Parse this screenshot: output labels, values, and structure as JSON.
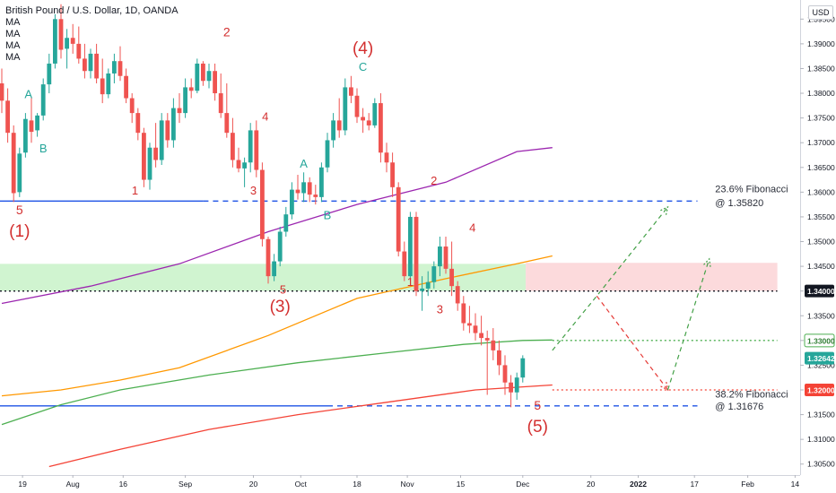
{
  "header": {
    "symbol": "British Pound / U.S. Dollar, 1D, OANDA",
    "indicators": [
      "MA",
      "MA",
      "MA",
      "MA"
    ]
  },
  "currency_button": "USD",
  "colors": {
    "bull": "#26a69a",
    "bear": "#ef5350",
    "blue": "#1e53e5",
    "green_label": "#26a69a",
    "red_label": "#d32f2f",
    "ma_purple": "#9c27b0",
    "ma_orange": "#ff9800",
    "ma_green": "#4caf50",
    "ma_red": "#f44336"
  },
  "chart_data": {
    "type": "candlestick",
    "title": "British Pound / U.S. Dollar, 1D, OANDA",
    "y_axis": {
      "ylim": [
        1.3035,
        1.3985
      ],
      "ticks": [
        "1.39500",
        "1.39000",
        "1.38500",
        "1.38000",
        "1.37500",
        "1.37000",
        "1.36500",
        "1.36000",
        "1.35500",
        "1.35000",
        "1.34500",
        "1.34000",
        "1.33500",
        "1.33000",
        "1.32500",
        "1.32000",
        "1.31500",
        "1.31000",
        "1.30500"
      ],
      "price_labels": [
        {
          "text": "1.34000",
          "value": 1.34,
          "style": "dark"
        },
        {
          "text": "1.33000",
          "value": 1.33,
          "style": "green"
        },
        {
          "text": "1.32642",
          "value": 1.32642,
          "style": "teal"
        },
        {
          "text": "1.32000",
          "value": 1.32,
          "style": "red"
        }
      ]
    },
    "x_axis": {
      "ticks": [
        "19",
        "Aug",
        "16",
        "Sep",
        "20",
        "Oct",
        "18",
        "Nov",
        "15",
        "Dec",
        "20",
        "2022",
        "17",
        "Feb",
        "14"
      ]
    },
    "candles": [
      {
        "o": 1.382,
        "h": 1.385,
        "l": 1.376,
        "c": 1.3785
      },
      {
        "o": 1.3785,
        "h": 1.381,
        "l": 1.37,
        "c": 1.372
      },
      {
        "o": 1.372,
        "h": 1.3735,
        "l": 1.358,
        "c": 1.3598
      },
      {
        "o": 1.36,
        "h": 1.369,
        "l": 1.359,
        "c": 1.3678
      },
      {
        "o": 1.368,
        "h": 1.376,
        "l": 1.367,
        "c": 1.3748
      },
      {
        "o": 1.3745,
        "h": 1.379,
        "l": 1.37,
        "c": 1.3722
      },
      {
        "o": 1.3725,
        "h": 1.376,
        "l": 1.3712,
        "c": 1.3755
      },
      {
        "o": 1.3755,
        "h": 1.383,
        "l": 1.3745,
        "c": 1.3818
      },
      {
        "o": 1.3818,
        "h": 1.388,
        "l": 1.38,
        "c": 1.386
      },
      {
        "o": 1.386,
        "h": 1.396,
        "l": 1.385,
        "c": 1.395
      },
      {
        "o": 1.395,
        "h": 1.398,
        "l": 1.387,
        "c": 1.3888
      },
      {
        "o": 1.389,
        "h": 1.393,
        "l": 1.385,
        "c": 1.3912
      },
      {
        "o": 1.3912,
        "h": 1.394,
        "l": 1.388,
        "c": 1.39
      },
      {
        "o": 1.39,
        "h": 1.3935,
        "l": 1.386,
        "c": 1.387
      },
      {
        "o": 1.387,
        "h": 1.39,
        "l": 1.383,
        "c": 1.3845
      },
      {
        "o": 1.3845,
        "h": 1.389,
        "l": 1.383,
        "c": 1.388
      },
      {
        "o": 1.388,
        "h": 1.39,
        "l": 1.382,
        "c": 1.383
      },
      {
        "o": 1.383,
        "h": 1.387,
        "l": 1.378,
        "c": 1.3798
      },
      {
        "o": 1.3798,
        "h": 1.385,
        "l": 1.379,
        "c": 1.384
      },
      {
        "o": 1.384,
        "h": 1.388,
        "l": 1.382,
        "c": 1.3865
      },
      {
        "o": 1.3865,
        "h": 1.3895,
        "l": 1.3825,
        "c": 1.3835
      },
      {
        "o": 1.3835,
        "h": 1.385,
        "l": 1.378,
        "c": 1.379
      },
      {
        "o": 1.379,
        "h": 1.38,
        "l": 1.374,
        "c": 1.376
      },
      {
        "o": 1.376,
        "h": 1.377,
        "l": 1.3705,
        "c": 1.372
      },
      {
        "o": 1.372,
        "h": 1.373,
        "l": 1.361,
        "c": 1.3625
      },
      {
        "o": 1.3625,
        "h": 1.37,
        "l": 1.3605,
        "c": 1.369
      },
      {
        "o": 1.369,
        "h": 1.374,
        "l": 1.365,
        "c": 1.3665
      },
      {
        "o": 1.3665,
        "h": 1.376,
        "l": 1.3655,
        "c": 1.3745
      },
      {
        "o": 1.3745,
        "h": 1.376,
        "l": 1.369,
        "c": 1.3705
      },
      {
        "o": 1.3705,
        "h": 1.379,
        "l": 1.369,
        "c": 1.377
      },
      {
        "o": 1.377,
        "h": 1.38,
        "l": 1.374,
        "c": 1.376
      },
      {
        "o": 1.376,
        "h": 1.383,
        "l": 1.375,
        "c": 1.3812
      },
      {
        "o": 1.3812,
        "h": 1.383,
        "l": 1.379,
        "c": 1.3805
      },
      {
        "o": 1.3805,
        "h": 1.387,
        "l": 1.38,
        "c": 1.386
      },
      {
        "o": 1.386,
        "h": 1.3865,
        "l": 1.3815,
        "c": 1.3825
      },
      {
        "o": 1.3825,
        "h": 1.386,
        "l": 1.381,
        "c": 1.3845
      },
      {
        "o": 1.3845,
        "h": 1.386,
        "l": 1.3785,
        "c": 1.38
      },
      {
        "o": 1.38,
        "h": 1.384,
        "l": 1.375,
        "c": 1.376
      },
      {
        "o": 1.376,
        "h": 1.382,
        "l": 1.371,
        "c": 1.372
      },
      {
        "o": 1.372,
        "h": 1.375,
        "l": 1.365,
        "c": 1.3665
      },
      {
        "o": 1.3665,
        "h": 1.369,
        "l": 1.364,
        "c": 1.3648
      },
      {
        "o": 1.3648,
        "h": 1.367,
        "l": 1.361,
        "c": 1.366
      },
      {
        "o": 1.366,
        "h": 1.374,
        "l": 1.364,
        "c": 1.3725
      },
      {
        "o": 1.3725,
        "h": 1.3745,
        "l": 1.363,
        "c": 1.3645
      },
      {
        "o": 1.3645,
        "h": 1.366,
        "l": 1.349,
        "c": 1.3505
      },
      {
        "o": 1.3505,
        "h": 1.351,
        "l": 1.3415,
        "c": 1.343
      },
      {
        "o": 1.343,
        "h": 1.3475,
        "l": 1.342,
        "c": 1.346
      },
      {
        "o": 1.346,
        "h": 1.353,
        "l": 1.345,
        "c": 1.352
      },
      {
        "o": 1.352,
        "h": 1.357,
        "l": 1.351,
        "c": 1.3555
      },
      {
        "o": 1.3555,
        "h": 1.362,
        "l": 1.3545,
        "c": 1.3605
      },
      {
        "o": 1.3605,
        "h": 1.3635,
        "l": 1.3585,
        "c": 1.3598
      },
      {
        "o": 1.3598,
        "h": 1.364,
        "l": 1.358,
        "c": 1.362
      },
      {
        "o": 1.362,
        "h": 1.363,
        "l": 1.358,
        "c": 1.3595
      },
      {
        "o": 1.3595,
        "h": 1.3615,
        "l": 1.3575,
        "c": 1.359
      },
      {
        "o": 1.359,
        "h": 1.366,
        "l": 1.358,
        "c": 1.365
      },
      {
        "o": 1.365,
        "h": 1.372,
        "l": 1.364,
        "c": 1.3705
      },
      {
        "o": 1.3705,
        "h": 1.376,
        "l": 1.369,
        "c": 1.3745
      },
      {
        "o": 1.3745,
        "h": 1.379,
        "l": 1.371,
        "c": 1.3725
      },
      {
        "o": 1.3725,
        "h": 1.383,
        "l": 1.3715,
        "c": 1.3812
      },
      {
        "o": 1.3812,
        "h": 1.3835,
        "l": 1.378,
        "c": 1.3795
      },
      {
        "o": 1.3795,
        "h": 1.381,
        "l": 1.374,
        "c": 1.3752
      },
      {
        "o": 1.3752,
        "h": 1.377,
        "l": 1.372,
        "c": 1.3745
      },
      {
        "o": 1.3745,
        "h": 1.376,
        "l": 1.3725,
        "c": 1.3735
      },
      {
        "o": 1.3735,
        "h": 1.379,
        "l": 1.373,
        "c": 1.378
      },
      {
        "o": 1.378,
        "h": 1.38,
        "l": 1.366,
        "c": 1.368
      },
      {
        "o": 1.368,
        "h": 1.37,
        "l": 1.364,
        "c": 1.366
      },
      {
        "o": 1.366,
        "h": 1.368,
        "l": 1.359,
        "c": 1.361
      },
      {
        "o": 1.361,
        "h": 1.362,
        "l": 1.347,
        "c": 1.348
      },
      {
        "o": 1.348,
        "h": 1.35,
        "l": 1.342,
        "c": 1.343
      },
      {
        "o": 1.343,
        "h": 1.356,
        "l": 1.342,
        "c": 1.355
      },
      {
        "o": 1.355,
        "h": 1.356,
        "l": 1.339,
        "c": 1.34
      },
      {
        "o": 1.34,
        "h": 1.343,
        "l": 1.336,
        "c": 1.3405
      },
      {
        "o": 1.3405,
        "h": 1.344,
        "l": 1.339,
        "c": 1.3418
      },
      {
        "o": 1.3418,
        "h": 1.346,
        "l": 1.3405,
        "c": 1.345
      },
      {
        "o": 1.345,
        "h": 1.351,
        "l": 1.343,
        "c": 1.349
      },
      {
        "o": 1.349,
        "h": 1.351,
        "l": 1.3435,
        "c": 1.3445
      },
      {
        "o": 1.3445,
        "h": 1.35,
        "l": 1.339,
        "c": 1.341
      },
      {
        "o": 1.341,
        "h": 1.342,
        "l": 1.336,
        "c": 1.3375
      },
      {
        "o": 1.3375,
        "h": 1.339,
        "l": 1.332,
        "c": 1.3335
      },
      {
        "o": 1.3335,
        "h": 1.337,
        "l": 1.3315,
        "c": 1.333
      },
      {
        "o": 1.333,
        "h": 1.3355,
        "l": 1.33,
        "c": 1.3315
      },
      {
        "o": 1.3315,
        "h": 1.335,
        "l": 1.329,
        "c": 1.3305
      },
      {
        "o": 1.3305,
        "h": 1.332,
        "l": 1.319,
        "c": 1.33
      },
      {
        "o": 1.33,
        "h": 1.3325,
        "l": 1.326,
        "c": 1.328
      },
      {
        "o": 1.328,
        "h": 1.33,
        "l": 1.323,
        "c": 1.325
      },
      {
        "o": 1.325,
        "h": 1.327,
        "l": 1.319,
        "c": 1.3215
      },
      {
        "o": 1.3215,
        "h": 1.323,
        "l": 1.3165,
        "c": 1.3195
      },
      {
        "o": 1.3195,
        "h": 1.3235,
        "l": 1.318,
        "c": 1.3225
      },
      {
        "o": 1.3225,
        "h": 1.327,
        "l": 1.3215,
        "c": 1.3264
      }
    ],
    "moving_averages": [
      {
        "name": "MA",
        "color": "#9c27b0",
        "points": [
          [
            0,
            1.3375
          ],
          [
            15,
            1.341
          ],
          [
            30,
            1.3455
          ],
          [
            45,
            1.352
          ],
          [
            60,
            1.3575
          ],
          [
            75,
            1.362
          ],
          [
            87,
            1.3682
          ],
          [
            93,
            1.369
          ]
        ]
      },
      {
        "name": "MA",
        "color": "#ff9800",
        "points": [
          [
            0,
            1.3188
          ],
          [
            10,
            1.32
          ],
          [
            20,
            1.322
          ],
          [
            30,
            1.3245
          ],
          [
            45,
            1.331
          ],
          [
            60,
            1.3385
          ],
          [
            75,
            1.3425
          ],
          [
            87,
            1.3455
          ],
          [
            93,
            1.3471
          ]
        ]
      },
      {
        "name": "MA",
        "color": "#4caf50",
        "points": [
          [
            0,
            1.313
          ],
          [
            10,
            1.317
          ],
          [
            20,
            1.32
          ],
          [
            35,
            1.323
          ],
          [
            50,
            1.3255
          ],
          [
            65,
            1.3275
          ],
          [
            78,
            1.3292
          ],
          [
            88,
            1.33
          ],
          [
            93,
            1.3301
          ]
        ]
      },
      {
        "name": "MA",
        "color": "#f44336",
        "points": [
          [
            8,
            1.3045
          ],
          [
            20,
            1.308
          ],
          [
            35,
            1.312
          ],
          [
            50,
            1.315
          ],
          [
            65,
            1.3175
          ],
          [
            80,
            1.32
          ],
          [
            93,
            1.321
          ]
        ]
      }
    ],
    "zones": [
      {
        "name": "green-zone",
        "from": 1.34,
        "to": 1.3455,
        "x_start": -1,
        "x_end": 88.5,
        "color": "#c8f2c8"
      },
      {
        "name": "red-zone",
        "from": 1.34,
        "to": 1.3457,
        "x_start": 88.5,
        "x_end": 131,
        "color": "#fbd4d6"
      }
    ],
    "horizontal_lines": [
      {
        "name": "fib-23-solid",
        "value": 1.3582,
        "x_start": -1,
        "x_end": 34,
        "color": "#1e53e5",
        "dash": false
      },
      {
        "name": "fib-23-dashed",
        "value": 1.3582,
        "x_start": 34,
        "x_end": 117.5,
        "color": "#1e53e5",
        "dash": true
      },
      {
        "name": "fib-38-solid",
        "value": 1.31676,
        "x_start": -1,
        "x_end": 55,
        "color": "#1e53e5",
        "dash": false
      },
      {
        "name": "fib-38-dashed",
        "value": 1.31676,
        "x_start": 55,
        "x_end": 117.5,
        "color": "#1e53e5",
        "dash": true
      },
      {
        "name": "line-134000",
        "value": 1.34,
        "x_start": -1,
        "x_end": 131,
        "color": "#131722",
        "dash": "dot"
      },
      {
        "name": "line-133000",
        "value": 1.33,
        "x_start": 93,
        "x_end": 131,
        "color": "#4caf50",
        "dash": "dot"
      },
      {
        "name": "line-132000",
        "value": 1.32,
        "x_start": 93,
        "x_end": 131,
        "color": "#f44336",
        "dash": "dot"
      }
    ],
    "projection_paths": [
      {
        "name": "green-path-upper",
        "color": "#43a047",
        "points": [
          [
            93,
            1.328
          ],
          [
            100.5,
            1.339
          ],
          [
            112.5,
            1.357
          ]
        ]
      },
      {
        "name": "red-path",
        "color": "#e53935",
        "points": [
          [
            100.5,
            1.339
          ],
          [
            112.5,
            1.32
          ]
        ]
      },
      {
        "name": "green-path-lower",
        "color": "#43a047",
        "points": [
          [
            112.5,
            1.32
          ],
          [
            119.5,
            1.3465
          ]
        ]
      }
    ],
    "wave_labels": [
      {
        "text": "5",
        "x": 3,
        "y": 1.3555,
        "color": "#d32f2f",
        "size": 14
      },
      {
        "text": "(1)",
        "x": 3,
        "y": 1.351,
        "color": "#d32f2f",
        "size": 19
      },
      {
        "text": "A",
        "x": 4.5,
        "y": 1.379,
        "color": "#26a69a",
        "size": 13
      },
      {
        "text": "B",
        "x": 7,
        "y": 1.368,
        "color": "#26a69a",
        "size": 13
      },
      {
        "text": "1",
        "x": 22.5,
        "y": 1.3595,
        "color": "#d32f2f",
        "size": 13
      },
      {
        "text": "2",
        "x": 38,
        "y": 1.3915,
        "color": "#d32f2f",
        "size": 14
      },
      {
        "text": "4",
        "x": 44.5,
        "y": 1.3745,
        "color": "#d32f2f",
        "size": 13
      },
      {
        "text": "3",
        "x": 42.5,
        "y": 1.3595,
        "color": "#d32f2f",
        "size": 13
      },
      {
        "text": "5",
        "x": 47.5,
        "y": 1.3395,
        "color": "#d32f2f",
        "size": 13
      },
      {
        "text": "(3)",
        "x": 47,
        "y": 1.3358,
        "color": "#d32f2f",
        "size": 19
      },
      {
        "text": "A",
        "x": 51,
        "y": 1.365,
        "color": "#26a69a",
        "size": 13
      },
      {
        "text": "B",
        "x": 55,
        "y": 1.3545,
        "color": "#26a69a",
        "size": 13
      },
      {
        "text": "(4)",
        "x": 61,
        "y": 1.388,
        "color": "#d32f2f",
        "size": 19
      },
      {
        "text": "C",
        "x": 61,
        "y": 1.3845,
        "color": "#26a69a",
        "size": 13
      },
      {
        "text": "2",
        "x": 73,
        "y": 1.3615,
        "color": "#d32f2f",
        "size": 13
      },
      {
        "text": "1",
        "x": 69,
        "y": 1.341,
        "color": "#d32f2f",
        "size": 13
      },
      {
        "text": "3",
        "x": 74,
        "y": 1.3355,
        "color": "#d32f2f",
        "size": 13
      },
      {
        "text": "4",
        "x": 79.5,
        "y": 1.352,
        "color": "#d32f2f",
        "size": 13
      },
      {
        "text": "5",
        "x": 90.5,
        "y": 1.316,
        "color": "#d32f2f",
        "size": 14
      },
      {
        "text": "(5)",
        "x": 90.5,
        "y": 1.3115,
        "color": "#d32f2f",
        "size": 19
      }
    ],
    "annotations": [
      {
        "line1": "23.6% Fibonacci",
        "line2": "@ 1.35820",
        "x": 120.5,
        "y1": 1.36,
        "y2": 1.3572
      },
      {
        "line1": "38.2% Fibonacci",
        "line2": "@ 1.31676",
        "x": 120.5,
        "y1": 1.3185,
        "y2": 1.316
      }
    ]
  }
}
